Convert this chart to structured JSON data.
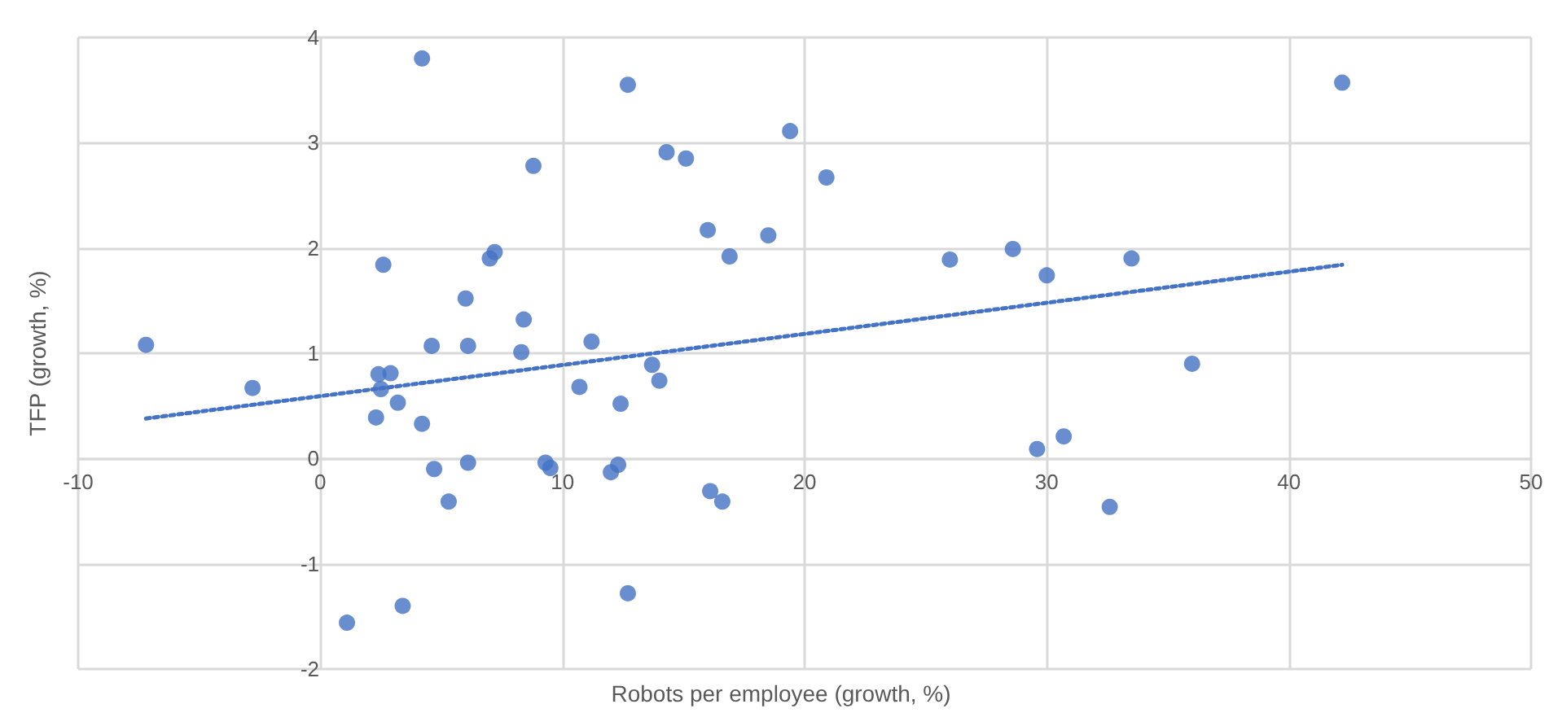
{
  "chart_data": {
    "type": "scatter",
    "xlabel": "Robots per employee (growth, %)",
    "ylabel": "TFP (growth, %)",
    "xlim": [
      -10,
      50
    ],
    "xticks": [
      -10,
      0,
      10,
      20,
      30,
      40,
      50
    ],
    "ylim": [
      -2,
      4
    ],
    "yticks": [
      -2,
      -1,
      0,
      1,
      2,
      3,
      4
    ],
    "grid": true,
    "marker": "circle",
    "series": [
      {
        "color": "#4472c4",
        "x": [
          -7.2,
          -2.8,
          4.2,
          12.7,
          42.2,
          19.4,
          8.8,
          14.3,
          15.1,
          20.9,
          16.0,
          18.5,
          16.9,
          26.0,
          28.6,
          30.0,
          33.5,
          2.6,
          7.2,
          7.0,
          6.0,
          8.4,
          4.6,
          6.1,
          8.3,
          11.2,
          2.4,
          2.9,
          2.5,
          3.2,
          2.3,
          4.2,
          10.7,
          13.7,
          14.0,
          12.4,
          4.7,
          6.1,
          5.3,
          9.3,
          9.5,
          12.0,
          12.3,
          16.1,
          16.6,
          29.6,
          30.7,
          32.6,
          36.0,
          1.1,
          3.4,
          12.7
        ],
        "values": [
          1.08,
          0.67,
          3.8,
          3.55,
          3.57,
          3.11,
          2.78,
          2.91,
          2.85,
          2.67,
          2.17,
          2.12,
          1.92,
          1.89,
          1.99,
          1.74,
          1.9,
          1.84,
          1.96,
          1.9,
          1.52,
          1.32,
          1.07,
          1.07,
          1.01,
          1.11,
          0.8,
          0.81,
          0.66,
          0.53,
          0.39,
          0.33,
          0.68,
          0.89,
          0.74,
          0.52,
          -0.1,
          -0.04,
          -0.41,
          -0.04,
          -0.09,
          -0.13,
          -0.06,
          -0.31,
          -0.41,
          0.09,
          0.21,
          -0.46,
          0.9,
          -1.56,
          -1.4,
          -1.28
        ]
      },
      {
        "type": "line",
        "color": "#4472c4",
        "line_style": "dotted",
        "marker": "none",
        "x": [
          -7.2,
          42.2
        ],
        "values": [
          0.38,
          1.84
        ]
      }
    ]
  }
}
